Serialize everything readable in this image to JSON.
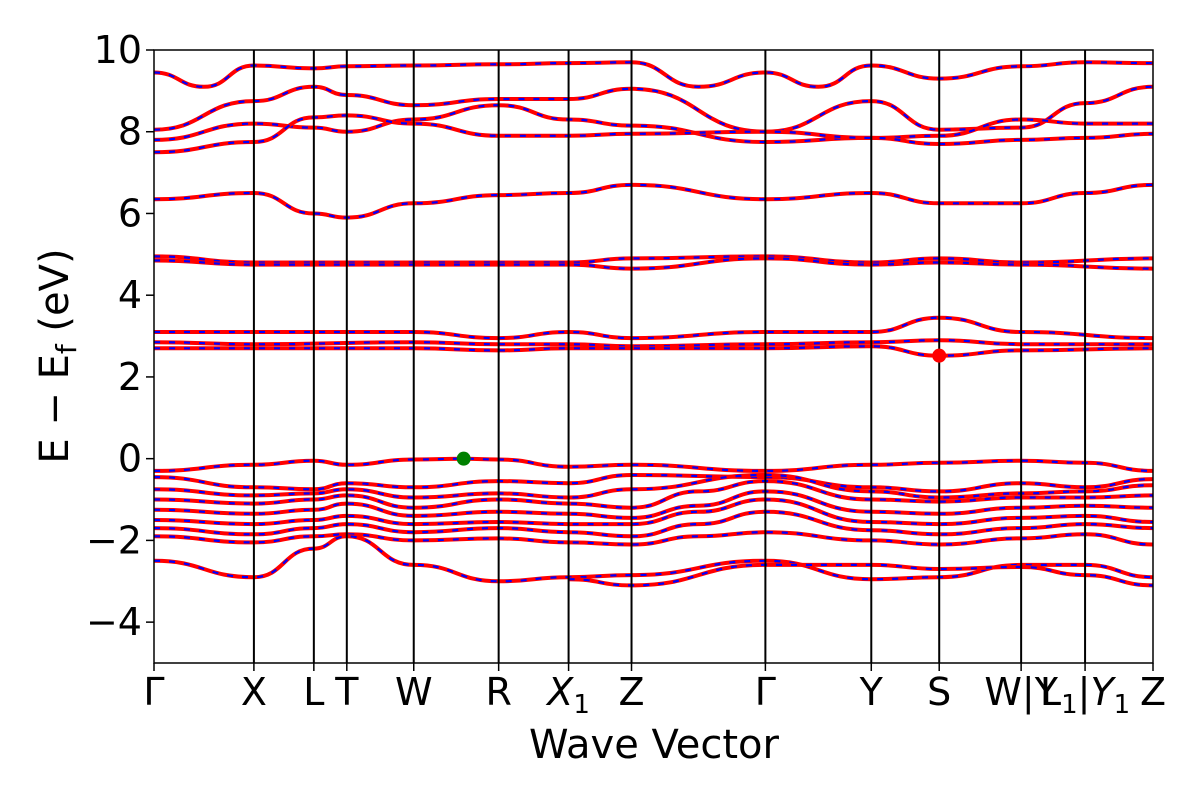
{
  "chart_data": {
    "type": "line",
    "xlabel": "Wave Vector",
    "ylabel": "E − E_f (eV)",
    "ylabel_main": "E − E",
    "ylabel_sub": "f",
    "ylabel_unit": " (eV)",
    "ylim": [
      -5,
      10
    ],
    "yticks": [
      -4,
      -2,
      0,
      2,
      4,
      6,
      8,
      10
    ],
    "ytick_labels": [
      "−4",
      "−2",
      "0",
      "2",
      "4",
      "6",
      "8",
      "10"
    ],
    "xlim": [
      0,
      1
    ],
    "kpoint_positions": [
      0.0,
      0.1,
      0.16,
      0.193,
      0.26,
      0.345,
      0.415,
      0.478,
      0.612,
      0.718,
      0.786,
      0.868,
      0.932,
      1.0
    ],
    "kpoint_labels": [
      "Γ",
      "X",
      "L",
      "T",
      "W",
      "R",
      "X1",
      "Z",
      "Γ",
      "Y",
      "S",
      "W|Y",
      "L1|Y1",
      "Z"
    ],
    "grid": false,
    "legend": "none",
    "line_colors": {
      "band": "#ff0000",
      "dash": "#0000ff"
    },
    "special_points": [
      {
        "name": "vbm",
        "x": 0.31,
        "y": 0.0,
        "color": "#008000"
      },
      {
        "name": "cbm",
        "x": 0.786,
        "y": 2.52,
        "color": "#ff0000"
      }
    ],
    "series": [
      {
        "x": [
          0,
          0.05,
          0.1,
          0.16,
          0.193,
          0.26,
          0.345,
          0.415,
          0.478,
          0.545,
          0.612,
          0.665,
          0.718,
          0.786,
          0.868,
          0.932,
          1.0
        ],
        "values": [
          9.45,
          9.1,
          9.62,
          9.55,
          9.6,
          9.62,
          9.65,
          9.68,
          9.7,
          9.1,
          9.45,
          9.1,
          9.62,
          9.3,
          9.6,
          9.7,
          9.68
        ]
      },
      {
        "x": [
          0,
          0.1,
          0.16,
          0.193,
          0.26,
          0.345,
          0.415,
          0.478,
          0.612,
          0.718,
          0.786,
          0.868,
          0.932,
          1.0
        ],
        "values": [
          8.05,
          8.75,
          9.1,
          8.9,
          8.65,
          8.8,
          8.8,
          9.05,
          8.0,
          8.75,
          8.05,
          8.1,
          8.7,
          9.1
        ]
      },
      {
        "x": [
          0,
          0.1,
          0.16,
          0.193,
          0.26,
          0.345,
          0.415,
          0.478,
          0.612,
          0.718,
          0.786,
          0.868,
          0.932,
          1.0
        ],
        "values": [
          7.8,
          8.2,
          8.1,
          8.0,
          8.3,
          8.65,
          8.3,
          8.15,
          7.75,
          7.85,
          7.9,
          8.3,
          8.2,
          8.2
        ]
      },
      {
        "x": [
          0,
          0.1,
          0.16,
          0.193,
          0.26,
          0.345,
          0.415,
          0.478,
          0.612,
          0.718,
          0.786,
          0.868,
          0.932,
          1.0
        ],
        "values": [
          7.5,
          7.75,
          8.35,
          8.4,
          8.2,
          7.9,
          7.9,
          7.95,
          8.0,
          7.85,
          7.7,
          7.8,
          7.85,
          7.95
        ]
      },
      {
        "x": [
          0,
          0.1,
          0.16,
          0.193,
          0.26,
          0.345,
          0.415,
          0.478,
          0.612,
          0.718,
          0.786,
          0.868,
          0.932,
          1.0
        ],
        "values": [
          6.35,
          6.5,
          6.0,
          5.9,
          6.25,
          6.45,
          6.5,
          6.7,
          6.35,
          6.5,
          6.25,
          6.25,
          6.5,
          6.7
        ]
      },
      {
        "x": [
          0,
          0.1,
          0.26,
          0.415,
          0.478,
          0.612,
          0.718,
          0.786,
          0.868,
          1.0
        ],
        "values": [
          4.95,
          4.8,
          4.8,
          4.8,
          4.9,
          4.95,
          4.8,
          4.9,
          4.8,
          4.9
        ]
      },
      {
        "x": [
          0,
          0.1,
          0.26,
          0.415,
          0.478,
          0.612,
          0.718,
          0.786,
          0.868,
          1.0
        ],
        "values": [
          4.85,
          4.75,
          4.75,
          4.75,
          4.65,
          4.9,
          4.75,
          4.8,
          4.75,
          4.65
        ]
      },
      {
        "x": [
          0,
          0.1,
          0.26,
          0.345,
          0.415,
          0.478,
          0.612,
          0.718,
          0.786,
          0.868,
          1.0
        ],
        "values": [
          3.1,
          3.1,
          3.1,
          2.95,
          3.1,
          2.95,
          3.1,
          3.1,
          3.45,
          3.1,
          2.95
        ]
      },
      {
        "x": [
          0,
          0.1,
          0.26,
          0.345,
          0.415,
          0.478,
          0.612,
          0.718,
          0.786,
          0.868,
          1.0
        ],
        "values": [
          2.85,
          2.8,
          2.85,
          2.8,
          2.8,
          2.75,
          2.8,
          2.85,
          2.9,
          2.8,
          2.8
        ]
      },
      {
        "x": [
          0,
          0.1,
          0.26,
          0.345,
          0.415,
          0.478,
          0.612,
          0.718,
          0.786,
          0.868,
          1.0
        ],
        "values": [
          2.7,
          2.7,
          2.7,
          2.65,
          2.7,
          2.7,
          2.7,
          2.75,
          2.52,
          2.65,
          2.7
        ]
      },
      {
        "x": [
          0,
          0.1,
          0.16,
          0.193,
          0.26,
          0.31,
          0.345,
          0.415,
          0.478,
          0.612,
          0.718,
          0.786,
          0.868,
          0.932,
          1.0
        ],
        "values": [
          -0.3,
          -0.15,
          -0.05,
          -0.15,
          -0.02,
          0.0,
          -0.02,
          -0.2,
          -0.15,
          -0.3,
          -0.15,
          -0.1,
          -0.05,
          -0.1,
          -0.3
        ]
      },
      {
        "x": [
          0,
          0.1,
          0.16,
          0.193,
          0.26,
          0.345,
          0.415,
          0.478,
          0.612,
          0.718,
          0.786,
          0.868,
          0.932,
          1.0
        ],
        "values": [
          -0.45,
          -0.7,
          -0.75,
          -0.6,
          -0.7,
          -0.55,
          -0.6,
          -0.4,
          -0.45,
          -0.7,
          -0.8,
          -0.6,
          -0.7,
          -0.5
        ]
      },
      {
        "x": [
          0,
          0.1,
          0.16,
          0.193,
          0.26,
          0.345,
          0.415,
          0.478,
          0.612,
          0.718,
          0.786,
          0.868,
          0.932,
          1.0
        ],
        "values": [
          -0.75,
          -0.9,
          -0.85,
          -0.75,
          -0.95,
          -0.85,
          -0.95,
          -0.75,
          -0.4,
          -0.8,
          -0.95,
          -0.85,
          -0.8,
          -0.65
        ]
      },
      {
        "x": [
          0,
          0.1,
          0.16,
          0.193,
          0.26,
          0.345,
          0.415,
          0.478,
          0.545,
          0.612,
          0.718,
          0.786,
          0.868,
          0.932,
          1.0
        ],
        "values": [
          -1.0,
          -1.1,
          -1.0,
          -0.9,
          -1.2,
          -1.0,
          -1.1,
          -1.2,
          -0.8,
          -0.55,
          -1.0,
          -1.05,
          -0.95,
          -0.95,
          -0.9
        ]
      },
      {
        "x": [
          0,
          0.1,
          0.16,
          0.193,
          0.26,
          0.345,
          0.415,
          0.478,
          0.545,
          0.612,
          0.718,
          0.786,
          0.868,
          0.932,
          1.0
        ],
        "values": [
          -1.25,
          -1.35,
          -1.25,
          -1.1,
          -1.4,
          -1.3,
          -1.35,
          -1.45,
          -1.15,
          -0.8,
          -1.3,
          -1.35,
          -1.2,
          -1.15,
          -1.2
        ]
      },
      {
        "x": [
          0,
          0.1,
          0.16,
          0.193,
          0.26,
          0.345,
          0.415,
          0.478,
          0.545,
          0.612,
          0.718,
          0.786,
          0.868,
          0.932,
          1.0
        ],
        "values": [
          -1.5,
          -1.6,
          -1.5,
          -1.4,
          -1.6,
          -1.55,
          -1.6,
          -1.6,
          -1.3,
          -1.0,
          -1.55,
          -1.6,
          -1.45,
          -1.4,
          -1.55
        ]
      },
      {
        "x": [
          0,
          0.1,
          0.16,
          0.193,
          0.26,
          0.345,
          0.415,
          0.478,
          0.545,
          0.612,
          0.718,
          0.786,
          0.868,
          0.932,
          1.0
        ],
        "values": [
          -1.7,
          -1.85,
          -1.7,
          -1.6,
          -1.8,
          -1.7,
          -1.8,
          -1.9,
          -1.6,
          -1.3,
          -1.75,
          -1.85,
          -1.7,
          -1.6,
          -1.7
        ]
      },
      {
        "x": [
          0,
          0.1,
          0.16,
          0.193,
          0.26,
          0.345,
          0.415,
          0.478,
          0.545,
          0.612,
          0.718,
          0.786,
          0.868,
          0.932,
          1.0
        ],
        "values": [
          -1.9,
          -2.05,
          -1.9,
          -1.85,
          -2.0,
          -1.95,
          -2.05,
          -2.1,
          -1.9,
          -1.8,
          -2.0,
          -2.1,
          -1.95,
          -1.85,
          -2.1
        ]
      },
      {
        "x": [
          0,
          0.1,
          0.16,
          0.193,
          0.26,
          0.345,
          0.415,
          0.478,
          0.612,
          0.718,
          0.786,
          0.868,
          0.932,
          1.0
        ],
        "values": [
          -2.5,
          -2.9,
          -2.2,
          -1.9,
          -2.6,
          -3.0,
          -2.9,
          -2.85,
          -2.5,
          -2.95,
          -2.9,
          -2.6,
          -2.6,
          -2.9
        ]
      },
      {
        "x": [
          0.415,
          0.478,
          0.612,
          0.718,
          0.786,
          0.868,
          0.932,
          1.0
        ],
        "values": [
          -2.95,
          -3.1,
          -2.6,
          -2.6,
          -2.7,
          -2.65,
          -2.85,
          -3.1
        ]
      }
    ]
  }
}
